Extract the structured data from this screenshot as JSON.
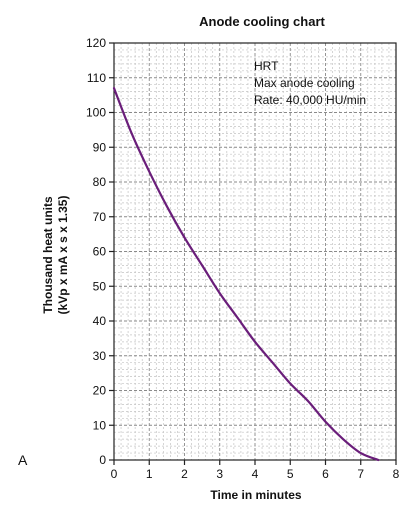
{
  "panel_label": "A",
  "chart_data": {
    "type": "line",
    "title": "Anode cooling chart",
    "xlabel": "Time in minutes",
    "ylabel_lines": [
      "Thousand heat units",
      "(kVp x mA x s x 1.35)"
    ],
    "xlim": [
      0,
      8
    ],
    "ylim": [
      0,
      120
    ],
    "x_ticks": [
      0,
      1,
      2,
      3,
      4,
      5,
      6,
      7,
      8
    ],
    "y_ticks": [
      0,
      10,
      20,
      30,
      40,
      50,
      60,
      70,
      80,
      90,
      100,
      110,
      120
    ],
    "grid": true,
    "annotation_lines": [
      "HRT",
      "Max anode cooling",
      "Rate: 40,000 HU/min"
    ],
    "series": [
      {
        "color": "#6a1e7a",
        "x": [
          0,
          0.5,
          1,
          1.5,
          2,
          2.5,
          3,
          3.5,
          4,
          4.5,
          5,
          5.5,
          6,
          6.5,
          7,
          7.5
        ],
        "y": [
          107,
          94,
          83,
          73,
          64,
          56,
          48,
          41,
          34,
          28,
          22,
          17,
          11,
          6,
          2,
          0
        ]
      }
    ]
  }
}
